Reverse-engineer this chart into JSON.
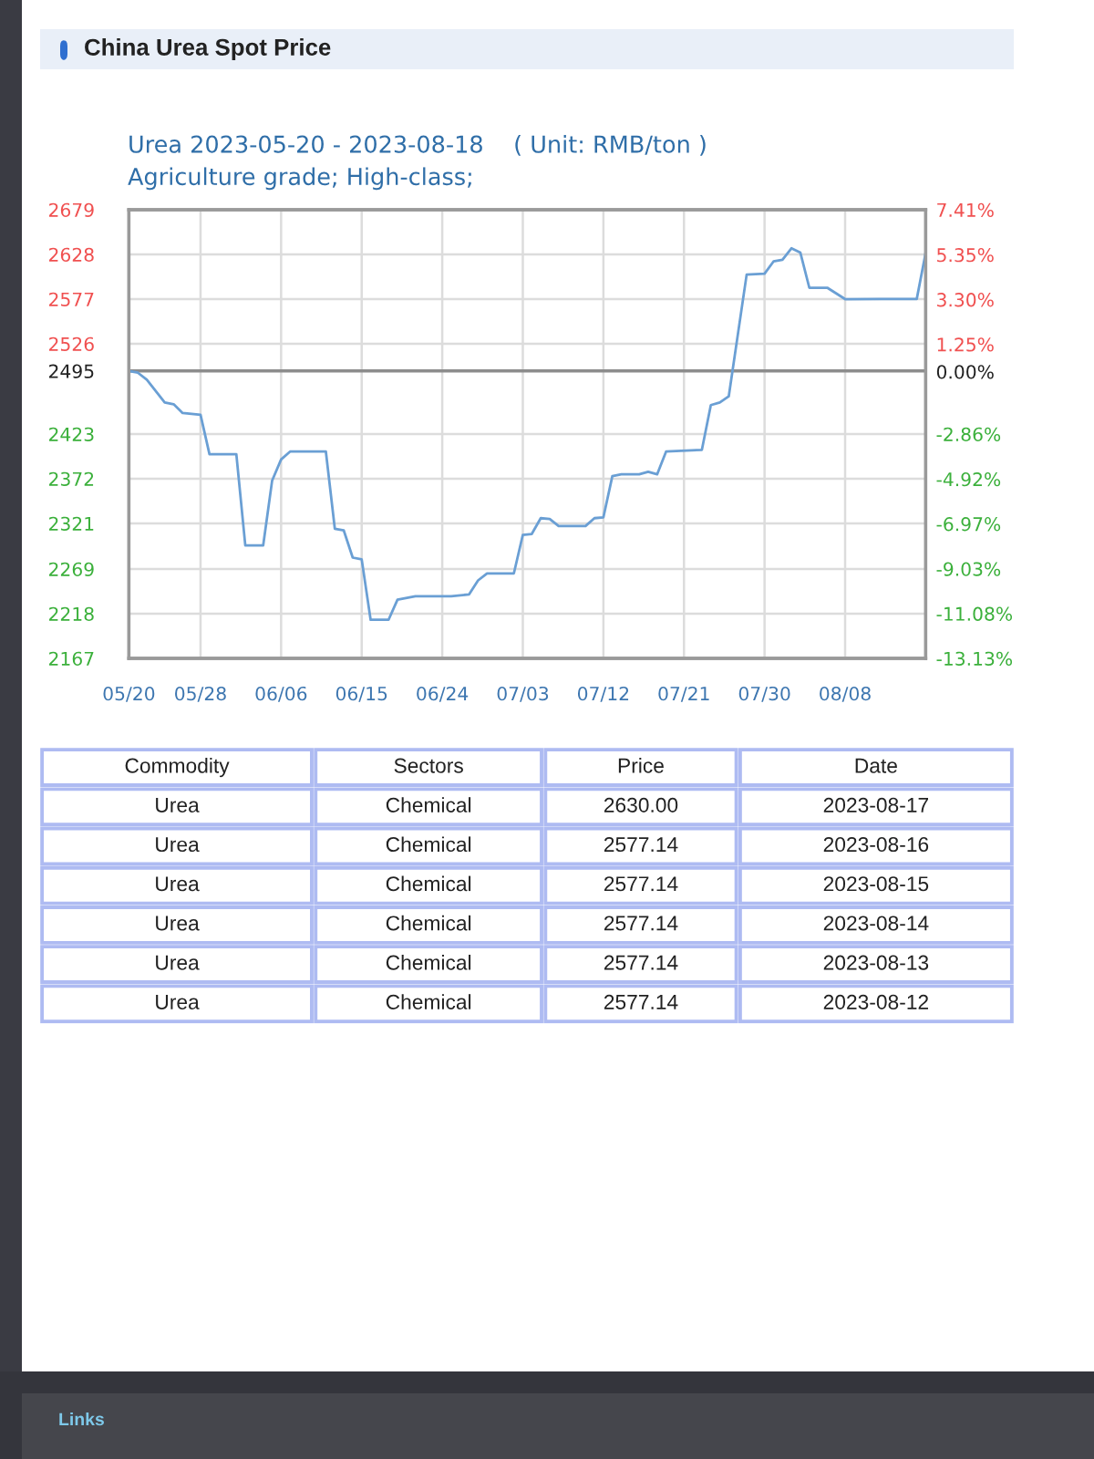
{
  "chart_data": [
    {
      "type": "line",
      "title": "China Urea Spot Price",
      "subtitle": "Urea 2023-05-20 - 2023-08-18    ( Unit: RMB/ton )\nAgriculture grade; High-class;",
      "x": [
        "2023-05-20",
        "2023-05-21",
        "2023-05-22",
        "2023-05-24",
        "2023-05-25",
        "2023-05-26",
        "2023-05-28",
        "2023-05-29",
        "2023-06-01",
        "2023-06-02",
        "2023-06-04",
        "2023-06-05",
        "2023-06-06",
        "2023-06-07",
        "2023-06-11",
        "2023-06-12",
        "2023-06-13",
        "2023-06-14",
        "2023-06-15",
        "2023-06-16",
        "2023-06-18",
        "2023-06-19",
        "2023-06-21",
        "2023-06-25",
        "2023-06-27",
        "2023-06-28",
        "2023-06-29",
        "2023-07-02",
        "2023-07-03",
        "2023-07-04",
        "2023-07-05",
        "2023-07-06",
        "2023-07-07",
        "2023-07-10",
        "2023-07-11",
        "2023-07-12",
        "2023-07-13",
        "2023-07-14",
        "2023-07-16",
        "2023-07-17",
        "2023-07-18",
        "2023-07-19",
        "2023-07-23",
        "2023-07-24",
        "2023-07-25",
        "2023-07-26",
        "2023-07-28",
        "2023-07-30",
        "2023-07-31",
        "2023-08-01",
        "2023-08-02",
        "2023-08-03",
        "2023-08-04",
        "2023-08-06",
        "2023-08-08",
        "2023-08-12",
        "2023-08-13",
        "2023-08-14",
        "2023-08-15",
        "2023-08-16",
        "2023-08-17"
      ],
      "series": [
        {
          "color": "#6a9fd4",
          "values": [
            2495,
            2493,
            2485,
            2459,
            2457,
            2447,
            2445,
            2400,
            2400,
            2296,
            2296,
            2370,
            2394,
            2403,
            2403,
            2315,
            2313,
            2282,
            2280,
            2211,
            2211,
            2234,
            2238,
            2238,
            2240,
            2256,
            2264,
            2264,
            2308,
            2309,
            2327,
            2326,
            2318,
            2318,
            2327,
            2328,
            2375,
            2377,
            2377,
            2380,
            2377,
            2403,
            2405,
            2456,
            2459,
            2466,
            2605,
            2606,
            2620,
            2622,
            2635,
            2630,
            2590,
            2590,
            2577,
            2577.14,
            2577.14,
            2577.14,
            2577.14,
            2577.14,
            2630
          ]
        }
      ],
      "xlim": [
        "2023-05-20",
        "2023-08-17"
      ],
      "xticks": [
        {
          "value": "2023-05-20",
          "label": "05/20"
        },
        {
          "value": "2023-05-28",
          "label": "05/28"
        },
        {
          "value": "2023-06-06",
          "label": "06/06"
        },
        {
          "value": "2023-06-15",
          "label": "06/15"
        },
        {
          "value": "2023-06-24",
          "label": "06/24"
        },
        {
          "value": "2023-07-03",
          "label": "07/03"
        },
        {
          "value": "2023-07-12",
          "label": "07/12"
        },
        {
          "value": "2023-07-21",
          "label": "07/21"
        },
        {
          "value": "2023-07-30",
          "label": "07/30"
        },
        {
          "value": "2023-08-08",
          "label": "08/08"
        }
      ],
      "ylim": [
        2167,
        2679
      ],
      "yticks": [
        2167,
        2218,
        2269,
        2321,
        2372,
        2423,
        2495,
        2526,
        2577,
        2628,
        2679
      ],
      "y2lim": [
        -13.13,
        7.41
      ],
      "y2ticks": [
        {
          "value": -13.13,
          "label": "-13.13%"
        },
        {
          "value": -11.08,
          "label": "-11.08%"
        },
        {
          "value": -9.03,
          "label": "-9.03%"
        },
        {
          "value": -6.97,
          "label": "-6.97%"
        },
        {
          "value": -4.92,
          "label": "-4.92%"
        },
        {
          "value": -2.86,
          "label": "-2.86%"
        },
        {
          "value": 0,
          "label": "0.00%"
        },
        {
          "value": 1.25,
          "label": "1.25%"
        },
        {
          "value": 3.3,
          "label": "3.30%"
        },
        {
          "value": 5.35,
          "label": "5.35%"
        },
        {
          "value": 7.41,
          "label": "7.41%"
        }
      ],
      "ref_lines": [
        {
          "axis": "y",
          "value": 2495,
          "color": "#8c8c8c"
        }
      ],
      "grid": true
    },
    {
      "type": "other",
      "categories": [
        "Commodity",
        "Sectors",
        "Price",
        "Date"
      ],
      "cell_labels": [
        [
          "Urea",
          "Chemical",
          "2630.00",
          "2023-08-17"
        ],
        [
          "Urea",
          "Chemical",
          "2577.14",
          "2023-08-16"
        ],
        [
          "Urea",
          "Chemical",
          "2577.14",
          "2023-08-15"
        ],
        [
          "Urea",
          "Chemical",
          "2577.14",
          "2023-08-14"
        ],
        [
          "Urea",
          "Chemical",
          "2577.14",
          "2023-08-13"
        ],
        [
          "Urea",
          "Chemical",
          "2577.14",
          "2023-08-12"
        ]
      ],
      "annotations": [
        "Links"
      ]
    }
  ]
}
